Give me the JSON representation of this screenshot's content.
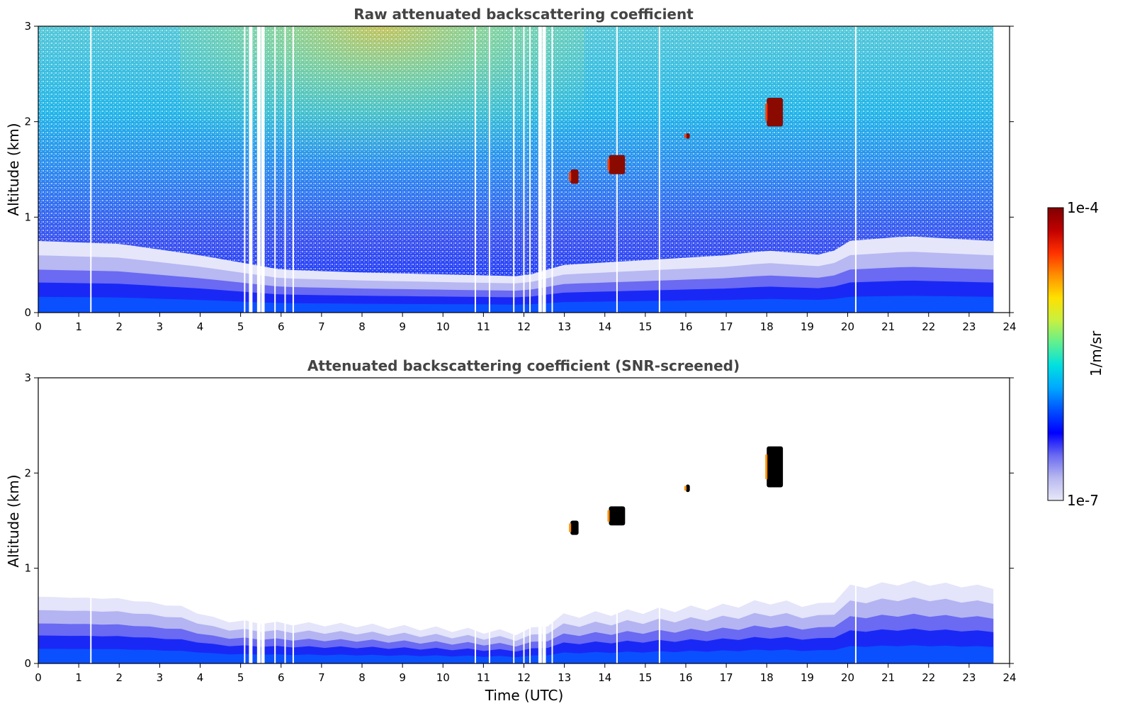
{
  "chart_data": [
    {
      "type": "heatmap",
      "title": "Raw attenuated backscattering coefficient",
      "xlabel": "",
      "ylabel": "Altitude (km)",
      "xlim": [
        0,
        24
      ],
      "ylim": [
        0,
        3
      ],
      "xticks": [
        "0",
        "1",
        "2",
        "3",
        "4",
        "5",
        "6",
        "7",
        "8",
        "9",
        "10",
        "11",
        "12",
        "13",
        "14",
        "15",
        "16",
        "17",
        "18",
        "19",
        "20",
        "21",
        "22",
        "23",
        "24"
      ],
      "yticks": [
        "0",
        "1",
        "2",
        "3"
      ],
      "data_end_time": 23.6,
      "gap_times": [
        1.3,
        5.1,
        5.25,
        5.45,
        5.55,
        5.85,
        6.1,
        6.3,
        10.8,
        11.15,
        11.75,
        12.0,
        12.15,
        12.4,
        12.5,
        12.7,
        14.3,
        15.35,
        20.2
      ],
      "features": [
        {
          "kind": "cloud",
          "time": [
            13.15,
            13.35
          ],
          "altitude": [
            1.35,
            1.5
          ]
        },
        {
          "kind": "cloud",
          "time": [
            14.1,
            14.5
          ],
          "altitude": [
            1.45,
            1.65
          ]
        },
        {
          "kind": "cloud",
          "time": [
            16.0,
            16.1
          ],
          "altitude": [
            1.82,
            1.88
          ]
        },
        {
          "kind": "cloud",
          "time": [
            18.0,
            18.4
          ],
          "altitude": [
            1.95,
            2.25
          ]
        }
      ],
      "boundary_layer_top_km": {
        "times": [
          0,
          2,
          4,
          6,
          8,
          10,
          12,
          13,
          15,
          17,
          18,
          19.5,
          20,
          21.5,
          23.6
        ],
        "values": [
          0.75,
          0.72,
          0.6,
          0.45,
          0.42,
          0.4,
          0.38,
          0.5,
          0.55,
          0.6,
          0.65,
          0.6,
          0.75,
          0.8,
          0.75
        ]
      }
    },
    {
      "type": "heatmap",
      "title": "Attenuated backscattering coefficient (SNR-screened)",
      "xlabel": "Time (UTC)",
      "ylabel": "Altitude (km)",
      "xlim": [
        0,
        24
      ],
      "ylim": [
        0,
        3
      ],
      "xticks": [
        "0",
        "1",
        "2",
        "3",
        "4",
        "5",
        "6",
        "7",
        "8",
        "9",
        "10",
        "11",
        "12",
        "13",
        "14",
        "15",
        "16",
        "17",
        "18",
        "19",
        "20",
        "21",
        "22",
        "23",
        "24"
      ],
      "yticks": [
        "0",
        "1",
        "2",
        "3"
      ],
      "data_end_time": 23.6,
      "gap_times": [
        1.3,
        5.1,
        5.25,
        5.45,
        5.55,
        5.85,
        6.1,
        6.3,
        10.8,
        11.15,
        11.75,
        12.0,
        12.15,
        12.4,
        12.5,
        12.7,
        14.3,
        15.35,
        20.2
      ],
      "features": [
        {
          "kind": "cloud",
          "time": [
            13.15,
            13.35
          ],
          "altitude": [
            1.35,
            1.5
          ]
        },
        {
          "kind": "cloud",
          "time": [
            14.1,
            14.5
          ],
          "altitude": [
            1.45,
            1.65
          ]
        },
        {
          "kind": "cloud",
          "time": [
            16.0,
            16.1
          ],
          "altitude": [
            1.8,
            1.88
          ]
        },
        {
          "kind": "cloud",
          "time": [
            18.0,
            18.4
          ],
          "altitude": [
            1.85,
            2.28
          ]
        }
      ],
      "boundary_layer_top_km": {
        "times": [
          0,
          2,
          3.5,
          4.5,
          6,
          8,
          10,
          12,
          12.5,
          13,
          15,
          17,
          18,
          19.5,
          20,
          21.5,
          23.6
        ],
        "values": [
          0.7,
          0.68,
          0.6,
          0.45,
          0.42,
          0.4,
          0.36,
          0.32,
          0.4,
          0.5,
          0.55,
          0.6,
          0.65,
          0.6,
          0.8,
          0.85,
          0.8
        ]
      }
    }
  ],
  "colorbar": {
    "label": "1/m/sr",
    "max_label": "1e-4",
    "min_label": "1e-7",
    "scale": "log",
    "range": [
      1e-07,
      0.0001
    ],
    "colors": [
      "#e8e8f8",
      "#b8b8f0",
      "#6a6af2",
      "#0000ff",
      "#0050ff",
      "#00a8ff",
      "#00e0e0",
      "#60f090",
      "#c8f040",
      "#ffe000",
      "#ff9000",
      "#ff3000",
      "#c00000",
      "#800000"
    ]
  }
}
